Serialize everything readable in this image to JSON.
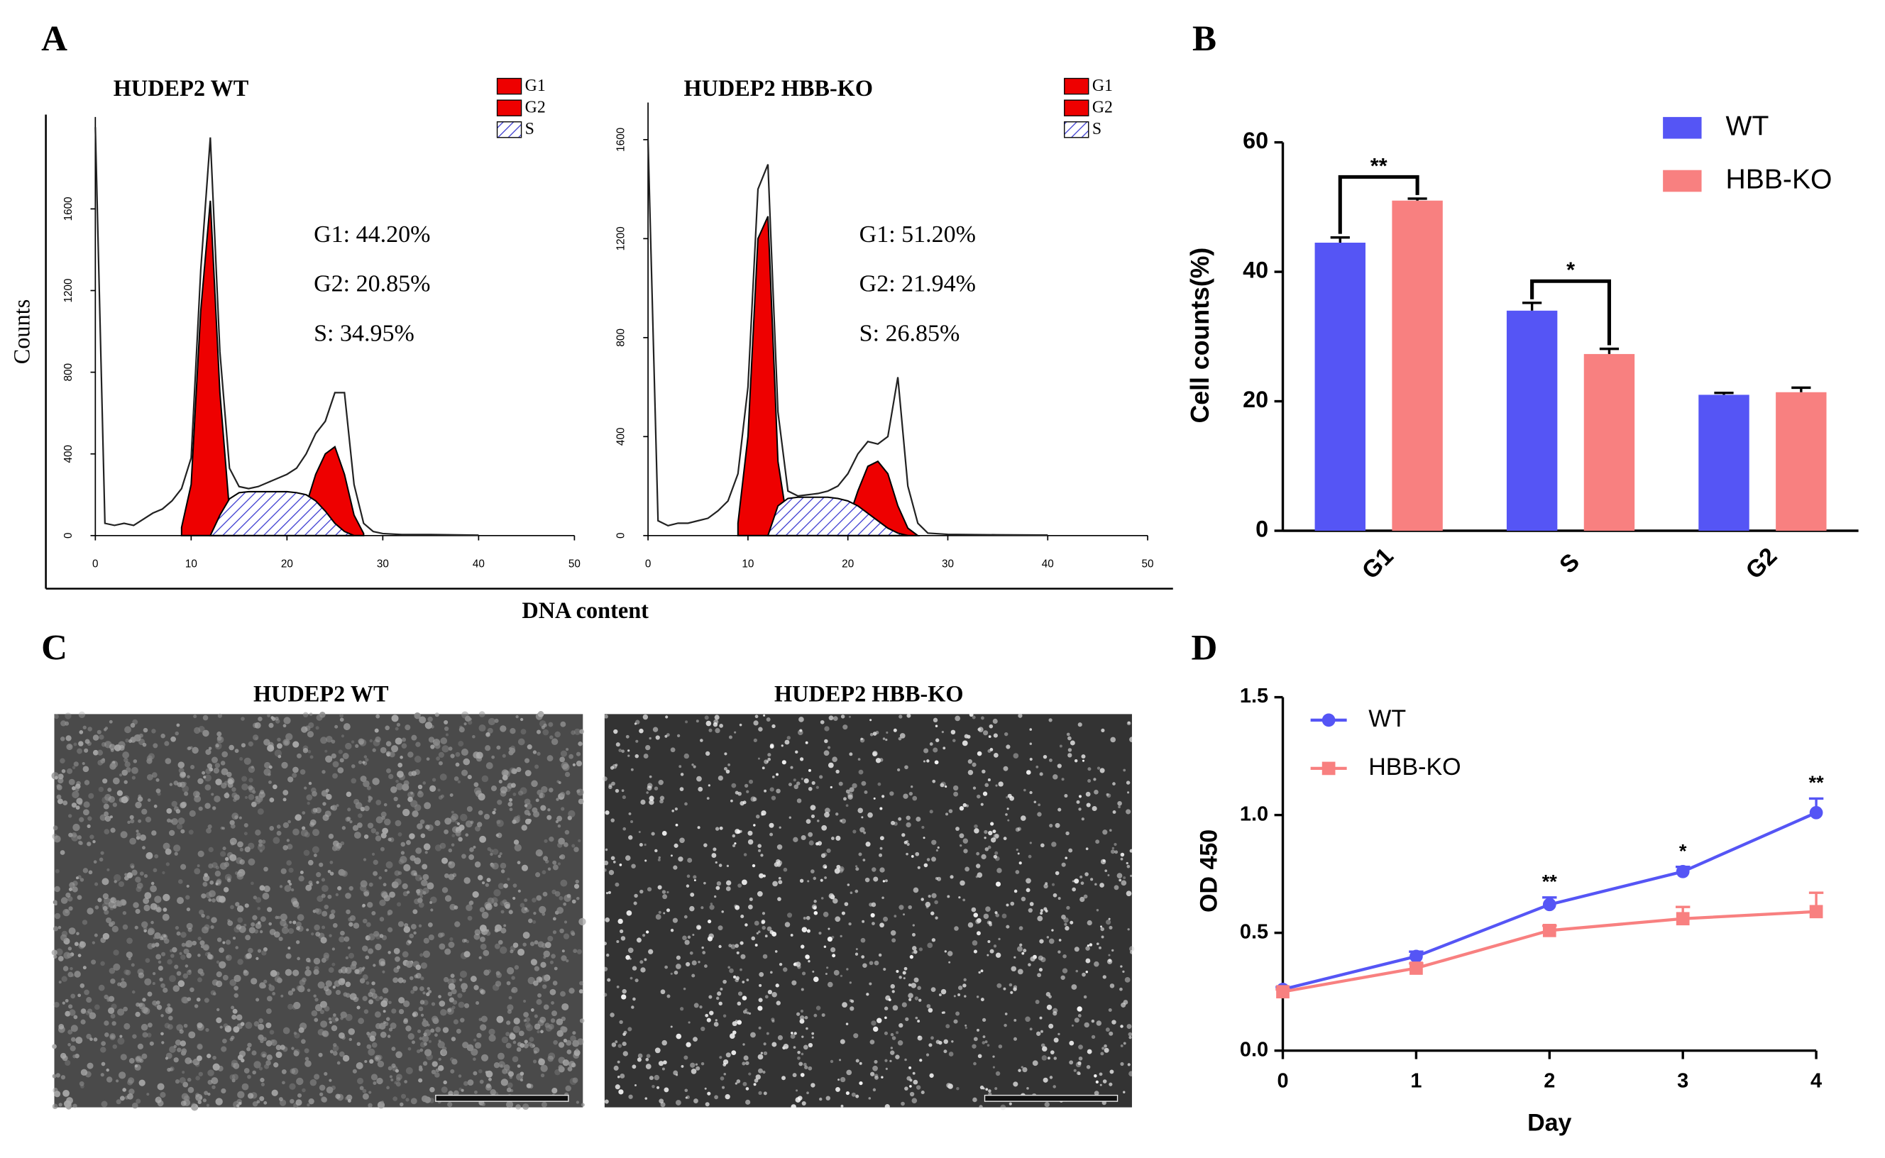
{
  "panel_labels": [
    "A",
    "B",
    "C",
    "D"
  ],
  "images": [
    {
      "title": "HUDEP2 WT"
    },
    {
      "title": "HUDEP2 HBB-KO"
    }
  ],
  "chart_data": [
    {
      "type": "cytometry",
      "title": "HUDEP2 WT",
      "ylabel": "Counts",
      "xlabel": "DNA content",
      "xlim": [
        0,
        50
      ],
      "xticks": [
        0,
        10,
        20,
        30,
        40,
        50
      ],
      "ylim": [
        0,
        2050
      ],
      "yticks": [
        0,
        400,
        800,
        1200,
        1600
      ],
      "annotations": [
        "G1: 44.20%",
        "G2: 20.85%",
        "S: 34.95%"
      ],
      "series": [
        {
          "name": "G1",
          "color": "#ee0000",
          "x": [
            9,
            10,
            11,
            12,
            13,
            14,
            15
          ],
          "values": [
            40,
            250,
            1100,
            1640,
            700,
            120,
            10
          ]
        },
        {
          "name": "G2",
          "color": "#ee0000",
          "x": [
            20,
            21,
            22,
            23,
            24,
            25,
            26,
            27,
            28
          ],
          "values": [
            0,
            40,
            150,
            300,
            400,
            435,
            300,
            100,
            10
          ]
        },
        {
          "name": "S",
          "color": "#3a3ad0",
          "x": [
            12,
            13,
            14,
            15,
            16,
            17,
            18,
            19,
            20,
            21,
            22,
            23,
            24,
            25,
            26,
            27
          ],
          "values": [
            0,
            100,
            180,
            210,
            215,
            215,
            215,
            215,
            215,
            210,
            200,
            170,
            120,
            60,
            20,
            0
          ]
        },
        {
          "color": "#222222",
          "x": [
            0,
            1,
            2,
            3,
            4,
            5,
            6,
            7,
            8,
            9,
            10,
            11,
            12,
            13,
            14,
            15,
            16,
            17,
            18,
            19,
            20,
            21,
            22,
            23,
            24,
            25,
            26,
            27,
            28,
            29,
            30,
            32,
            35,
            40
          ],
          "values": [
            2000,
            60,
            50,
            60,
            50,
            80,
            110,
            130,
            170,
            230,
            380,
            1300,
            1950,
            900,
            330,
            240,
            230,
            240,
            260,
            280,
            300,
            330,
            400,
            500,
            560,
            700,
            700,
            250,
            60,
            20,
            10,
            5,
            5,
            2
          ]
        }
      ]
    },
    {
      "type": "cytometry",
      "title": "HUDEP2 HBB-KO",
      "xlim": [
        0,
        50
      ],
      "xticks": [
        0,
        10,
        20,
        30,
        40,
        50
      ],
      "ylim": [
        0,
        1750
      ],
      "yticks": [
        0,
        400,
        800,
        1200,
        1600
      ],
      "annotations": [
        "G1: 51.20%",
        "G2: 21.94%",
        "S: 26.85%"
      ],
      "series": [
        {
          "name": "G1",
          "color": "#ee0000",
          "x": [
            9,
            10,
            11,
            12,
            13,
            14,
            15
          ],
          "values": [
            50,
            400,
            1200,
            1290,
            300,
            40,
            0
          ]
        },
        {
          "name": "G2",
          "color": "#ee0000",
          "x": [
            19,
            20,
            21,
            22,
            23,
            24,
            25,
            26,
            27
          ],
          "values": [
            0,
            60,
            180,
            280,
            300,
            250,
            120,
            30,
            0
          ]
        },
        {
          "name": "S",
          "color": "#3a3ad0",
          "x": [
            12,
            13,
            14,
            15,
            16,
            17,
            18,
            19,
            20,
            21,
            22,
            23,
            24,
            25,
            26
          ],
          "values": [
            0,
            120,
            150,
            155,
            155,
            155,
            155,
            150,
            140,
            120,
            90,
            60,
            30,
            10,
            0
          ]
        },
        {
          "color": "#222222",
          "x": [
            0,
            1,
            2,
            3,
            4,
            5,
            6,
            7,
            8,
            9,
            10,
            11,
            12,
            13,
            14,
            15,
            16,
            17,
            18,
            19,
            20,
            21,
            22,
            23,
            24,
            25,
            26,
            27,
            28,
            30,
            35,
            40
          ],
          "values": [
            1600,
            60,
            40,
            50,
            50,
            60,
            70,
            100,
            140,
            250,
            600,
            1400,
            1500,
            500,
            180,
            160,
            165,
            170,
            180,
            200,
            250,
            330,
            380,
            370,
            400,
            640,
            200,
            50,
            10,
            5,
            3,
            2
          ]
        }
      ]
    },
    {
      "type": "bar",
      "ylabel": "Cell counts(%)",
      "categories": [
        "G1",
        "S",
        "G2"
      ],
      "ylim": [
        0,
        60
      ],
      "yticks": [
        0,
        20,
        40,
        60
      ],
      "annotations": [
        "**",
        "*"
      ],
      "series": [
        {
          "name": "WT",
          "color": "#5555f5",
          "values": [
            44.5,
            34,
            21
          ],
          "errors": [
            0.8,
            1.2,
            0.3
          ]
        },
        {
          "name": "HBB-KO",
          "color": "#f88080",
          "values": [
            51,
            27.3,
            21.4
          ],
          "errors": [
            0.3,
            0.8,
            0.7
          ]
        }
      ]
    },
    {
      "type": "line",
      "xlabel": "Day",
      "ylabel": "OD 450",
      "x": [
        0,
        1,
        2,
        3,
        4
      ],
      "xlim": [
        0,
        4
      ],
      "xticks": [
        0,
        1,
        2,
        3,
        4
      ],
      "ylim": [
        0,
        1.5
      ],
      "yticks": [
        {
          "value": 0,
          "label": "0.0"
        },
        0.5,
        {
          "value": 1,
          "label": "1.0"
        },
        1.5
      ],
      "annotations": [
        "**",
        "*",
        "**"
      ],
      "series": [
        {
          "name": "WT",
          "color": "#5555f5",
          "values": [
            0.26,
            0.4,
            0.62,
            0.76,
            1.01
          ],
          "errors": [
            0.01,
            0.02,
            0.03,
            0.02,
            0.06
          ]
        },
        {
          "name": "HBB-KO",
          "color": "#f88080",
          "values": [
            0.25,
            0.35,
            0.51,
            0.56,
            0.59
          ],
          "errors": [
            0.01,
            0.02,
            0.02,
            0.05,
            0.08
          ]
        }
      ]
    }
  ]
}
